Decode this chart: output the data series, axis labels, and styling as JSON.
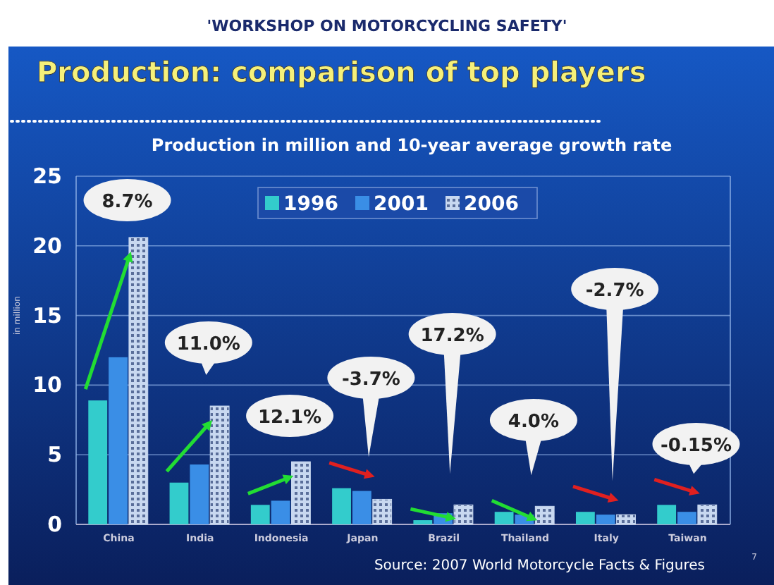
{
  "chart_data": {
    "type": "bar",
    "title": "Production: comparison of top players",
    "subtitle": "Production in million and 10-year average growth rate",
    "ylabel": "in million",
    "categories": [
      "China",
      "India",
      "Indonesia",
      "Japan",
      "Brazil",
      "Thailand",
      "Italy",
      "Taiwan"
    ],
    "series": [
      {
        "name": "1996",
        "color": "#33cccc",
        "values": [
          8.9,
          3,
          1.4,
          2.6,
          0.3,
          0.9,
          0.9,
          1.4
        ]
      },
      {
        "name": "2001",
        "color": "#3a8ee6",
        "values": [
          12,
          4.3,
          1.7,
          2.4,
          0.8,
          0.7,
          0.7,
          0.9
        ]
      },
      {
        "name": "2006",
        "color": "#c8d8f0",
        "values": [
          20.6,
          8.5,
          4.5,
          1.8,
          1.4,
          1.3,
          0.7,
          1.4
        ]
      }
    ],
    "ylim": [
      0,
      25
    ],
    "yticks": [
      0,
      5,
      10,
      15,
      20,
      25
    ],
    "grid": "y",
    "legend": "top right",
    "annotations": [
      "'WORKSHOP ON MOTORCYCLING SAFETY'",
      "Source: 2007 World Motorcycle Facts & Figures",
      "7",
      "8.7%",
      "11.0%",
      "12.1%",
      "-3.7%",
      "17.2%",
      "4.0%",
      "-2.7%",
      "-0.15%"
    ]
  }
}
